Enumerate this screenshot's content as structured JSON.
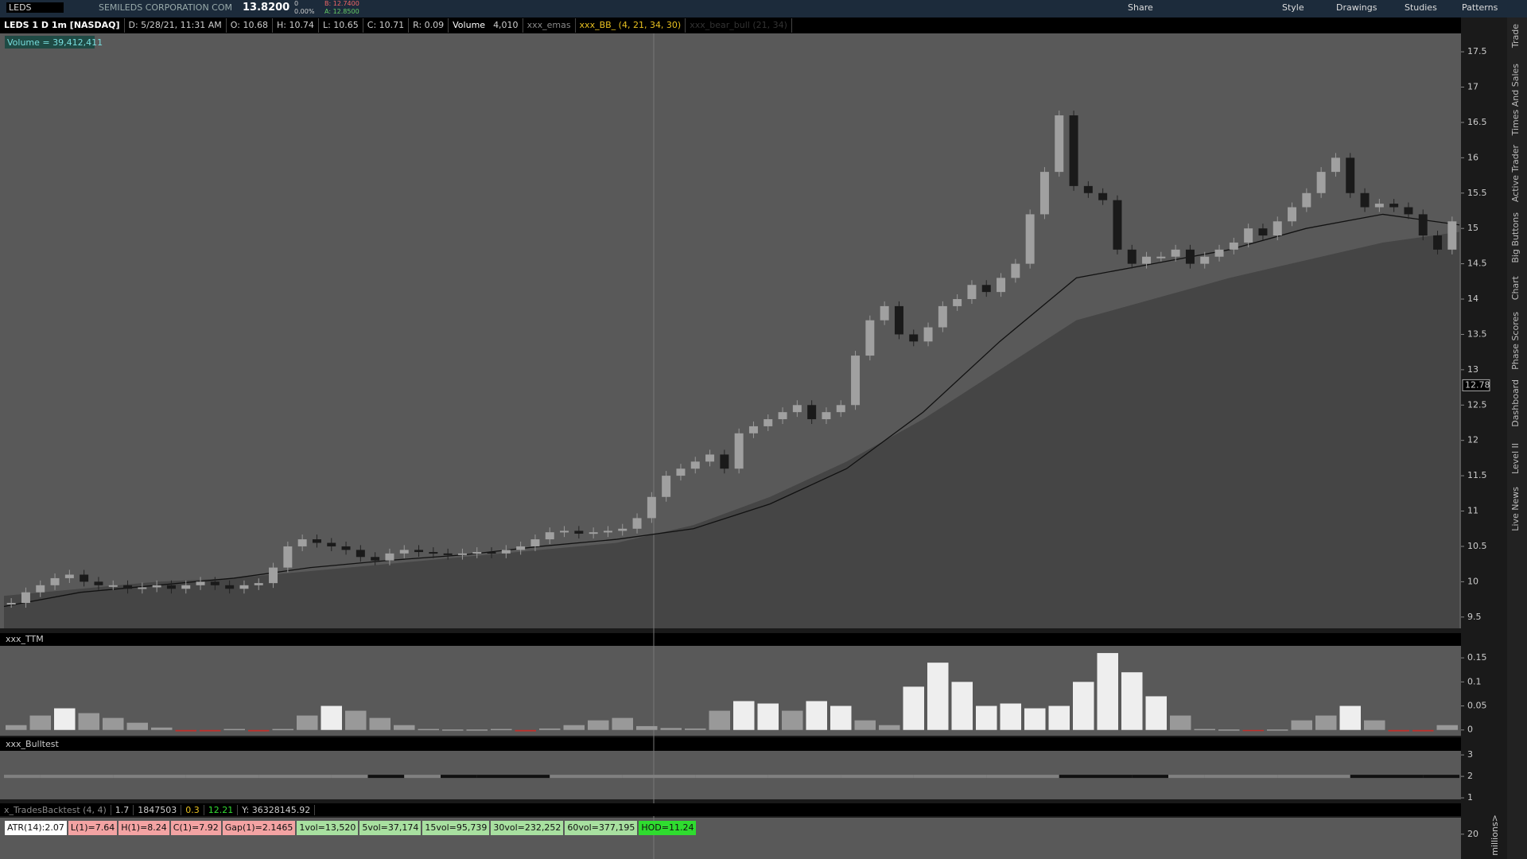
{
  "toolbar": {
    "symbol": "LEDS",
    "company": "SEMILEDS CORPORATION COM",
    "last": "13.8200",
    "change": "0",
    "change_pct": "0.00%",
    "bid": "B: 12.7400",
    "ask": "A: 12.8500",
    "buttons": [
      "Share",
      "Style",
      "Drawings",
      "Studies",
      "Patterns"
    ]
  },
  "info_bar": {
    "title": "LEDS 1 D 1m [NASDAQ]",
    "items": [
      "D: 5/28/21, 11:31 AM",
      "O: 10.68",
      "H: 10.74",
      "L: 10.65",
      "C: 10.71",
      "R: 0.09"
    ],
    "volume_label": "Volume",
    "volume": "4,010",
    "studies": [
      "xxx_emas",
      "xxx_BB_ (4, 21, 34, 30)",
      "xxx_bear_bull (21, 34)"
    ]
  },
  "volume_badge": "Volume = 39,412,411",
  "price_panel": {
    "ylim": [
      9.34,
      17.76
    ],
    "yticks": [
      9.5,
      10,
      10.5,
      11,
      11.5,
      12,
      12.5,
      13,
      13.5,
      14,
      14.5,
      15,
      15.5,
      16,
      16.5,
      17,
      17.5
    ],
    "current_price": 12.78,
    "closes": [
      9.7,
      9.85,
      9.95,
      10.05,
      10.1,
      10.0,
      9.95,
      9.95,
      9.9,
      9.92,
      9.95,
      9.9,
      9.95,
      10.0,
      9.95,
      9.9,
      9.95,
      9.98,
      10.2,
      10.5,
      10.6,
      10.55,
      10.5,
      10.45,
      10.35,
      10.3,
      10.4,
      10.45,
      10.42,
      10.4,
      10.38,
      10.4,
      10.42,
      10.4,
      10.45,
      10.5,
      10.6,
      10.7,
      10.72,
      10.68,
      10.7,
      10.72,
      10.75,
      10.9,
      11.2,
      11.5,
      11.6,
      11.7,
      11.8,
      11.6,
      12.1,
      12.2,
      12.3,
      12.4,
      12.5,
      12.3,
      12.4,
      12.5,
      13.2,
      13.7,
      13.9,
      13.5,
      13.4,
      13.6,
      13.9,
      14.0,
      14.2,
      14.1,
      14.3,
      14.5,
      15.2,
      15.8,
      16.6,
      15.6,
      15.5,
      15.4,
      14.7,
      14.5,
      14.6,
      14.6,
      14.7,
      14.5,
      14.6,
      14.7,
      14.8,
      15.0,
      14.9,
      15.1,
      15.3,
      15.5,
      15.8,
      16.0,
      15.5,
      15.3,
      15.35,
      15.3,
      15.2,
      14.9,
      14.7,
      15.1
    ],
    "ema": [
      9.65,
      9.85,
      9.95,
      10.05,
      10.2,
      10.3,
      10.38,
      10.5,
      10.6,
      10.75,
      11.1,
      11.6,
      12.4,
      13.4,
      14.3,
      14.5,
      14.7,
      15.0,
      15.2,
      15.05
    ],
    "overlay": [
      9.8,
      9.9,
      10.0,
      10.05,
      10.15,
      10.25,
      10.35,
      10.45,
      10.55,
      10.8,
      11.2,
      11.7,
      12.3,
      13.0,
      13.7,
      14.0,
      14.3,
      14.55,
      14.8,
      14.95
    ]
  },
  "ttm_panel": {
    "title": "xxx_TTM",
    "ylim": [
      -0.012,
      0.175
    ],
    "yticks": [
      0,
      0.05,
      0.1,
      0.15
    ],
    "values": [
      0.01,
      0.03,
      0.045,
      0.035,
      0.025,
      0.015,
      0.005,
      -0.003,
      -0.003,
      0.002,
      -0.003,
      0.002,
      0.03,
      0.05,
      0.04,
      0.025,
      0.01,
      0.002,
      0.001,
      0.001,
      0.002,
      -0.003,
      0.003,
      0.01,
      0.02,
      0.025,
      0.008,
      0.004,
      0.003,
      0.04,
      0.06,
      0.055,
      0.04,
      0.06,
      0.05,
      0.02,
      0.01,
      0.09,
      0.14,
      0.1,
      0.05,
      0.055,
      0.045,
      0.05,
      0.1,
      0.16,
      0.12,
      0.07,
      0.03,
      0.002,
      0.001,
      -0.002,
      0.001,
      0.02,
      0.03,
      0.05,
      0.02,
      -0.003,
      -0.003,
      0.01
    ]
  },
  "bull_panel": {
    "title": "xxx_Bulltest",
    "ylim": [
      0.93,
      3.19
    ],
    "yticks": [
      1,
      2,
      3
    ],
    "values": [
      2,
      2,
      2,
      2,
      2,
      2,
      2,
      2,
      2,
      2,
      2,
      2,
      2,
      2,
      2,
      2,
      2,
      2,
      2,
      2,
      2,
      2,
      2,
      2,
      2,
      2,
      2,
      2,
      2,
      2,
      2,
      2,
      2,
      2,
      2,
      2,
      2,
      2,
      2,
      2
    ],
    "dark": [
      false,
      false,
      false,
      false,
      false,
      false,
      false,
      false,
      false,
      false,
      true,
      false,
      true,
      true,
      true,
      false,
      false,
      false,
      false,
      false,
      false,
      false,
      false,
      false,
      false,
      false,
      false,
      false,
      false,
      true,
      true,
      true,
      false,
      false,
      false,
      false,
      false,
      true,
      true,
      true
    ]
  },
  "backtest_bar": {
    "items": [
      "x_TradesBacktest (4, 4)",
      "1.7",
      "1847503",
      "0.3",
      "12.21",
      "Y: 36328145.92"
    ]
  },
  "stats": [
    "ATR(14):2.07",
    "L(1)=7.64",
    "H(1)=8.24",
    "C(1)=7.92",
    "Gap(1)=2.1465",
    "1vol=13,520",
    "5vol=37,174",
    "15vol=95,739",
    "30vol=232,252",
    "60vol=377,195",
    "HOD=11.24"
  ],
  "bottom_panel": {
    "ylim": [
      17,
      22
    ],
    "yticks": [
      20
    ],
    "axis_label": "millions>"
  },
  "sidebar_tabs": [
    "Trade",
    "Times And Sales",
    "Active Trader",
    "Big Buttons",
    "Chart",
    "Phase Scores",
    "Dashboard",
    "Level II",
    "Live News"
  ]
}
